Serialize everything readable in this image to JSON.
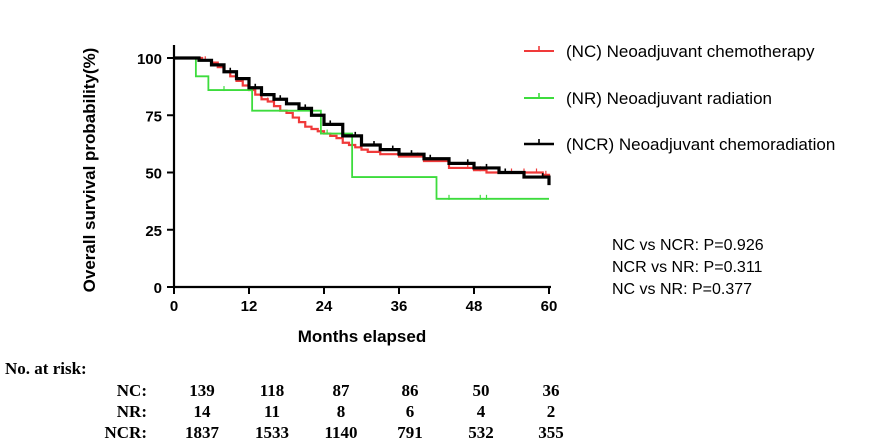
{
  "chart_data": {
    "type": "line",
    "subtype": "kaplan-meier survival curve",
    "title": "",
    "xlabel": "Months elapsed",
    "ylabel": "Overall survival probability(%)",
    "xlim": [
      0,
      60
    ],
    "ylim": [
      0,
      100
    ],
    "xticks": [
      "0",
      "12",
      "24",
      "36",
      "48",
      "60"
    ],
    "yticks": [
      "0",
      "25",
      "50",
      "75",
      "100"
    ],
    "grid": false,
    "legend_position": "top-right",
    "series": [
      {
        "name": "(NC) Neoadjuvant chemotherapy",
        "color": "#f03a3a",
        "x": [
          0,
          3.5,
          4.5,
          6,
          7,
          8,
          9,
          10,
          11,
          12,
          13,
          14,
          15,
          16,
          17,
          18,
          19,
          20,
          21,
          22,
          23,
          24,
          25,
          26,
          27,
          28,
          29,
          30,
          31,
          33,
          36,
          40,
          44,
          48,
          50,
          55,
          59,
          60
        ],
        "y": [
          100,
          100,
          99,
          98,
          96,
          94,
          92,
          90,
          88,
          86,
          84,
          82,
          81,
          79,
          77,
          76,
          74,
          72,
          70,
          69,
          68,
          67,
          66,
          65,
          63,
          62,
          61,
          60,
          59,
          58,
          57,
          55,
          52,
          51,
          50,
          50,
          49,
          48
        ],
        "censor_x": [
          5,
          8,
          15,
          20,
          27,
          30,
          33,
          39,
          44,
          47,
          49,
          52,
          54,
          56,
          58,
          59.5
        ]
      },
      {
        "name": "(NR) Neoadjuvant radiation",
        "color": "#3ddc3d",
        "x": [
          0,
          3.5,
          3.5,
          5.5,
          5.5,
          12.5,
          12.5,
          23.5,
          23.5,
          28.5,
          28.5,
          42,
          42,
          60
        ],
        "y": [
          100,
          100,
          92,
          92,
          86,
          86,
          77,
          77,
          67,
          67,
          48,
          48,
          38.5,
          38.5
        ],
        "censor_x": [
          8,
          24.5,
          44,
          49,
          50
        ]
      },
      {
        "name": "(NCR) Neoadjuvant chemoradiation",
        "color": "#000000",
        "x": [
          0,
          3,
          4,
          6,
          8,
          10,
          12,
          14,
          16,
          18,
          20,
          22,
          24,
          27,
          30,
          33,
          36,
          40,
          44,
          48,
          52,
          56,
          60
        ],
        "y": [
          100,
          100,
          99,
          97,
          94,
          91,
          87,
          84,
          82,
          80,
          78,
          75,
          71,
          66,
          62,
          60,
          58,
          56,
          54,
          52,
          50,
          48,
          44.5
        ],
        "censor_x": [
          9,
          13,
          17,
          21,
          25,
          29,
          32,
          35,
          38,
          41,
          44,
          47,
          50,
          53,
          56,
          59
        ]
      }
    ],
    "stats": [
      "NC vs NCR: P=0.926",
      "NCR vs NR: P=0.311",
      "NC vs NR: P=0.377"
    ],
    "risk_table": {
      "title": "No. at risk:",
      "rows": [
        {
          "label": "NC:",
          "values": [
            "139",
            "118",
            "87",
            "86",
            "50",
            "36"
          ]
        },
        {
          "label": "NR:",
          "values": [
            "14",
            "11",
            "8",
            "6",
            "4",
            "2"
          ]
        },
        {
          "label": "NCR:",
          "values": [
            "1837",
            "1533",
            "1140",
            "791",
            "532",
            "355"
          ]
        }
      ]
    }
  }
}
